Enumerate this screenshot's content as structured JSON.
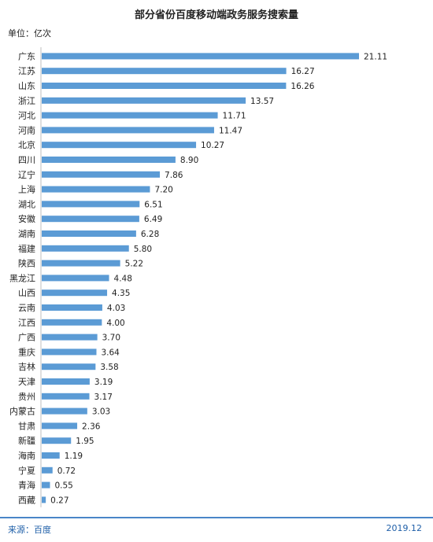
{
  "chart_data": {
    "type": "bar",
    "orientation": "horizontal",
    "title": "部分省份百度移动端政务服务搜索量",
    "unit_label": "单位：亿次",
    "categories": [
      "广东",
      "江苏",
      "山东",
      "浙江",
      "河北",
      "河南",
      "北京",
      "四川",
      "辽宁",
      "上海",
      "湖北",
      "安徽",
      "湖南",
      "福建",
      "陕西",
      "黑龙江",
      "山西",
      "云南",
      "江西",
      "广西",
      "重庆",
      "吉林",
      "天津",
      "贵州",
      "内蒙古",
      "甘肃",
      "新疆",
      "海南",
      "宁夏",
      "青海",
      "西藏"
    ],
    "value_labels": [
      "21.11",
      "16.27",
      "16.26",
      "13.57",
      "11.71",
      "11.47",
      "10.27",
      "8.90",
      "7.86",
      "7.20",
      "6.51",
      "6.49",
      "6.28",
      "5.80",
      "5.22",
      "4.48",
      "4.35",
      "4.03",
      "4.00",
      "3.70",
      "3.64",
      "3.58",
      "3.19",
      "3.17",
      "3.03",
      "2.36",
      "1.95",
      "1.19",
      "0.72",
      "0.55",
      "0.27"
    ],
    "values": [
      21.11,
      16.27,
      16.26,
      13.57,
      11.71,
      11.47,
      10.27,
      8.9,
      7.86,
      7.2,
      6.51,
      6.49,
      6.28,
      5.8,
      5.22,
      4.48,
      4.35,
      4.03,
      4.0,
      3.7,
      3.64,
      3.58,
      3.19,
      3.17,
      3.03,
      2.36,
      1.95,
      1.19,
      0.72,
      0.55,
      0.27
    ],
    "xlim": [
      0,
      22
    ],
    "bar_color": "#5b9bd5",
    "grid": false,
    "legend": "none"
  },
  "footer": {
    "source": "来源：百度",
    "date": "2019.12"
  },
  "colors": {
    "accent": "#4a86c8"
  }
}
